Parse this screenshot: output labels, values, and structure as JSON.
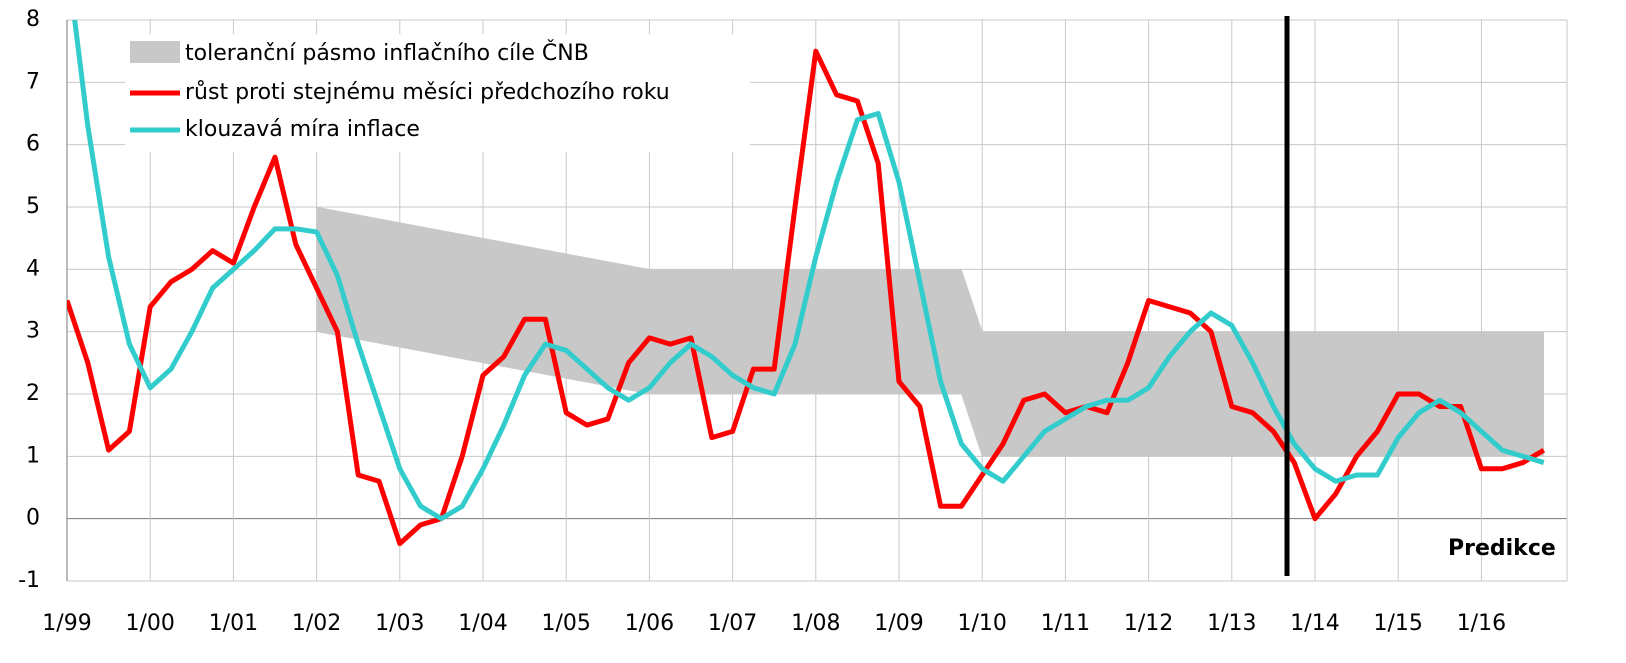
{
  "chart_data": {
    "type": "line",
    "categories": [
      "1/99",
      null,
      null,
      null,
      "1/00",
      null,
      null,
      null,
      "1/01",
      null,
      null,
      null,
      "1/02",
      null,
      null,
      null,
      "1/03",
      null,
      null,
      null,
      "1/04",
      null,
      null,
      null,
      "1/05",
      null,
      null,
      null,
      "1/06",
      null,
      null,
      null,
      "1/07",
      null,
      null,
      null,
      "1/08",
      null,
      null,
      null,
      "1/09",
      null,
      null,
      null,
      "1/10",
      null,
      null,
      null,
      "1/11",
      null,
      null,
      null,
      "1/12",
      null,
      null,
      null,
      "1/13",
      null,
      null,
      null,
      "1/14",
      null,
      null,
      null,
      "1/15",
      null,
      null,
      null,
      "1/16",
      null,
      null,
      null
    ],
    "band": {
      "name": "toleranční pásmo inflačního cíle ČNB",
      "color": "#c8c8c8",
      "low": [
        null,
        null,
        null,
        null,
        null,
        null,
        null,
        null,
        null,
        null,
        null,
        null,
        3,
        2.9375,
        2.875,
        2.8125,
        2.75,
        2.6875,
        2.625,
        2.5625,
        2.5,
        2.4375,
        2.375,
        2.3125,
        2.25,
        2.1875,
        2.125,
        2.0625,
        2,
        2,
        2,
        2,
        2,
        2,
        2,
        2,
        2,
        2,
        2,
        2,
        2,
        2,
        2,
        2,
        1,
        1,
        1,
        1,
        1,
        1,
        1,
        1,
        1,
        1,
        1,
        1,
        1,
        1,
        1,
        1,
        1,
        1,
        1,
        1,
        1,
        1,
        1,
        1,
        1,
        1,
        1,
        1
      ],
      "high": [
        null,
        null,
        null,
        null,
        null,
        null,
        null,
        null,
        null,
        null,
        null,
        null,
        5,
        4.9375,
        4.875,
        4.8125,
        4.75,
        4.6875,
        4.625,
        4.5625,
        4.5,
        4.4375,
        4.375,
        4.3125,
        4.25,
        4.1875,
        4.125,
        4.0625,
        4,
        4,
        4,
        4,
        4,
        4,
        4,
        4,
        4,
        4,
        4,
        4,
        4,
        4,
        4,
        4,
        3,
        3,
        3,
        3,
        3,
        3,
        3,
        3,
        3,
        3,
        3,
        3,
        3,
        3,
        3,
        3,
        3,
        3,
        3,
        3,
        3,
        3,
        3,
        3,
        3,
        3,
        3,
        3
      ]
    },
    "series": [
      {
        "name": "růst proti stejnému měsíci předchozího roku",
        "color": "#ff0000",
        "values": [
          3.5,
          2.5,
          1.1,
          1.4,
          3.4,
          3.8,
          4.0,
          4.3,
          4.1,
          5.0,
          5.8,
          4.4,
          3.7,
          3.0,
          0.7,
          0.6,
          -0.4,
          -0.1,
          0.0,
          1.0,
          2.3,
          2.6,
          3.2,
          3.2,
          1.7,
          1.5,
          1.6,
          2.5,
          2.9,
          2.8,
          2.9,
          1.3,
          1.4,
          2.4,
          2.4,
          5.0,
          7.5,
          6.8,
          6.7,
          5.7,
          2.2,
          1.8,
          0.2,
          0.2,
          0.7,
          1.2,
          1.9,
          2.0,
          1.7,
          1.8,
          1.7,
          2.5,
          3.5,
          3.4,
          3.3,
          3.0,
          1.8,
          1.7,
          1.4,
          0.9,
          0.0,
          0.4,
          1.0,
          1.4,
          2.0,
          2.0,
          1.8,
          1.8,
          0.8,
          0.8,
          0.9,
          1.1
        ]
      },
      {
        "name": "klouzavá míra inflace",
        "color": "#33cccc",
        "values": [
          9.0,
          6.3,
          4.2,
          2.8,
          2.1,
          2.4,
          3.0,
          3.7,
          4.0,
          4.3,
          4.65,
          4.65,
          4.6,
          3.9,
          2.8,
          1.8,
          0.8,
          0.2,
          0.0,
          0.2,
          0.8,
          1.5,
          2.3,
          2.8,
          2.7,
          2.4,
          2.1,
          1.9,
          2.1,
          2.5,
          2.8,
          2.6,
          2.3,
          2.1,
          2.0,
          2.8,
          4.2,
          5.4,
          6.4,
          6.5,
          5.4,
          3.8,
          2.2,
          1.2,
          0.8,
          0.6,
          1.0,
          1.4,
          1.6,
          1.8,
          1.9,
          1.9,
          2.1,
          2.6,
          3.0,
          3.3,
          3.1,
          2.5,
          1.8,
          1.2,
          0.8,
          0.6,
          0.7,
          0.7,
          1.3,
          1.7,
          1.9,
          1.7,
          1.4,
          1.1,
          1.0,
          0.9
        ]
      }
    ],
    "ylim": [
      -1,
      8
    ],
    "yticks": [
      -1,
      0,
      1,
      2,
      3,
      4,
      5,
      6,
      7,
      8
    ],
    "grid": true,
    "annotation": "Predikce"
  }
}
